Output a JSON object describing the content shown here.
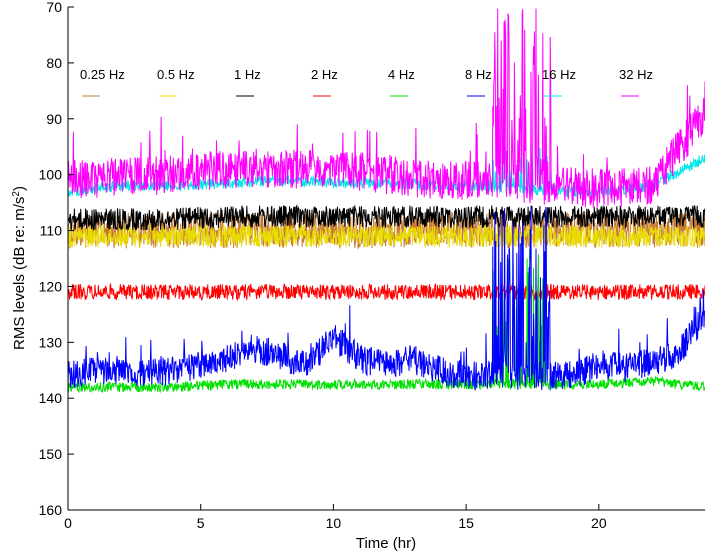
{
  "chart_data": {
    "type": "line",
    "title": "",
    "xlabel": "Time (hr)",
    "ylabel": "RMS levels (dB re: m/s²)",
    "ylabel_text": "RMS levels (dB re: m/s",
    "ylabel_sup": "2",
    "ylabel_close": ")",
    "xlim": [
      0,
      24
    ],
    "ylim": [
      70,
      160
    ],
    "y_inverted": true,
    "xticks": [
      0,
      5,
      10,
      15,
      20
    ],
    "yticks": [
      70,
      80,
      90,
      100,
      110,
      120,
      130,
      140,
      150,
      160
    ],
    "xtick_labels": [
      "0",
      "5",
      "10",
      "15",
      "20"
    ],
    "ytick_labels": [
      "70",
      "80",
      "90",
      "100",
      "110",
      "120",
      "130",
      "140",
      "150",
      "160"
    ],
    "grid": false,
    "legend_placement": "top, single row",
    "series": [
      {
        "name": "0.25 Hz",
        "color": "#c87a32",
        "x": [
          0,
          2,
          4,
          6,
          8,
          10,
          12,
          14,
          16,
          18,
          20,
          22,
          24
        ],
        "y": [
          110,
          110,
          110,
          110,
          110,
          110,
          110,
          110,
          110,
          110,
          110,
          110,
          110
        ]
      },
      {
        "name": "0.5 Hz",
        "color": "#e8dc00",
        "x": [
          0,
          2,
          4,
          6,
          8,
          10,
          12,
          14,
          16,
          18,
          20,
          22,
          24
        ],
        "y": [
          111,
          111,
          111,
          111,
          111,
          111,
          111,
          111,
          111,
          111,
          111,
          111,
          111
        ]
      },
      {
        "name": "1 Hz",
        "color": "#000000",
        "x": [
          0,
          2,
          4,
          6,
          8,
          10,
          12,
          14,
          16,
          18,
          20,
          22,
          24
        ],
        "y": [
          108,
          108,
          108,
          107.5,
          107.5,
          107.5,
          107.5,
          107.5,
          107.5,
          107.5,
          107.5,
          107.5,
          107.5
        ]
      },
      {
        "name": "2 Hz",
        "color": "#ff0000",
        "x": [
          0,
          2,
          4,
          6,
          8,
          10,
          12,
          14,
          16,
          18,
          20,
          22,
          24
        ],
        "y": [
          121,
          121,
          121,
          121,
          121,
          121,
          121,
          121,
          121,
          121,
          121,
          121,
          121
        ]
      },
      {
        "name": "4 Hz",
        "color": "#00e000",
        "x": [
          0,
          2,
          4,
          6,
          8,
          10,
          12,
          14,
          16,
          18,
          20,
          22,
          24
        ],
        "y": [
          138,
          138,
          138,
          137.5,
          137.5,
          137.5,
          137.5,
          137.5,
          137.5,
          137.5,
          137.5,
          137,
          138
        ]
      },
      {
        "name": "8 Hz",
        "color": "#0000ff",
        "x": [
          0,
          1,
          2,
          3,
          4,
          5,
          6,
          7,
          8,
          9,
          10,
          11,
          12,
          13,
          14,
          15,
          16,
          18,
          19,
          20,
          21,
          22,
          23,
          24
        ],
        "y": [
          136,
          135,
          135,
          135.5,
          135,
          134,
          133,
          131,
          132.5,
          134,
          129,
          133,
          134,
          133,
          135,
          136,
          136,
          136,
          136,
          134,
          134.5,
          133.5,
          132,
          125
        ]
      },
      {
        "name": "16 Hz",
        "color": "#00e8e8",
        "x": [
          0,
          2,
          4,
          6,
          8,
          10,
          12,
          14,
          16,
          18,
          20,
          22,
          24
        ],
        "y": [
          103,
          102,
          102,
          101.5,
          101,
          101.5,
          101.5,
          102,
          102,
          103,
          103,
          102,
          97
        ]
      },
      {
        "name": "32 Hz",
        "color": "#ff00ff",
        "x": [
          0,
          2,
          4,
          6,
          8,
          10,
          12,
          14,
          16,
          18,
          20,
          22,
          24
        ],
        "y": [
          101,
          100.5,
          100,
          99,
          99,
          99,
          100,
          101,
          101,
          102,
          102.5,
          102,
          89
        ]
      }
    ],
    "event_window_hr": [
      16,
      18.2
    ]
  }
}
